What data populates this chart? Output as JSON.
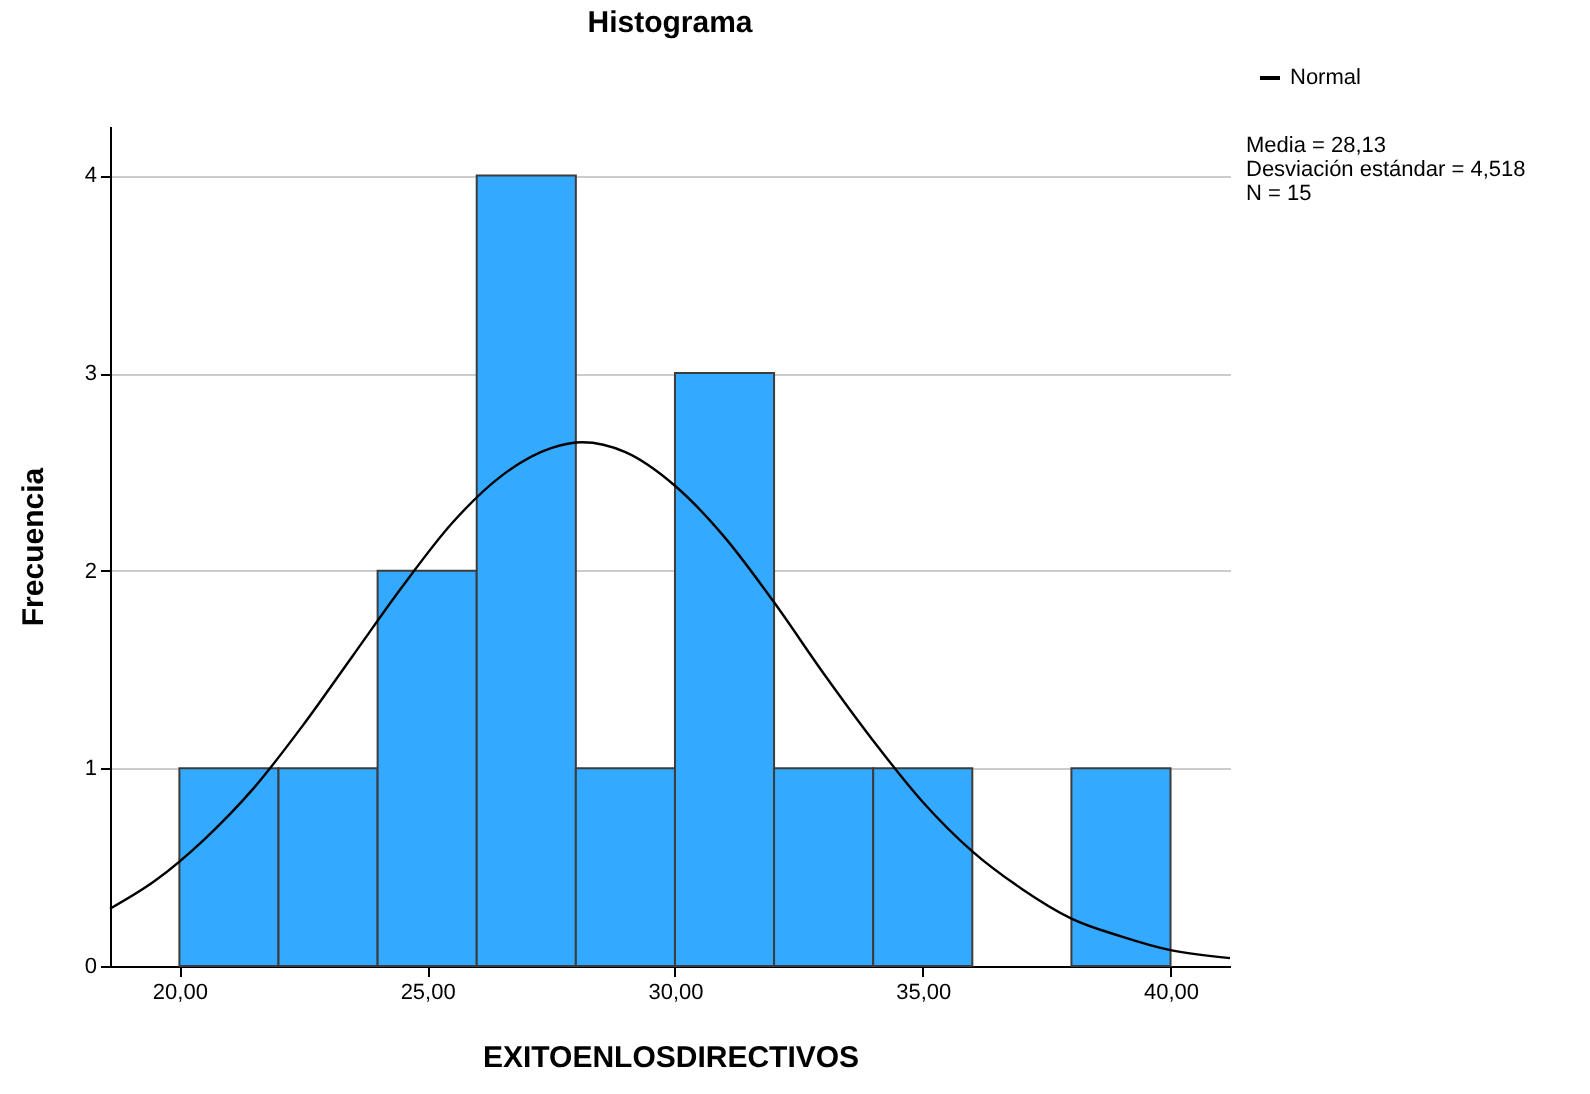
{
  "chart_data": {
    "type": "histogram",
    "title": "Histograma",
    "xlabel": "EXITOENLOSDIRECTIVOS",
    "ylabel": "Frecuencia",
    "bins": [
      20,
      22,
      24,
      26,
      28,
      30,
      32,
      34,
      36,
      38,
      40
    ],
    "values": [
      1,
      1,
      2,
      4,
      1,
      3,
      1,
      1,
      0,
      1
    ],
    "color": "#33aaff",
    "series": [
      {
        "type": "line",
        "name": "Normal",
        "color": "#000000",
        "x": [
          18.6,
          19.5,
          20.5,
          21.5,
          22.5,
          23.5,
          24.5,
          25.5,
          26.5,
          27.5,
          28.13,
          29,
          30,
          31,
          32,
          33,
          34,
          35,
          36,
          37,
          38,
          39,
          40,
          41.2
        ],
        "values": [
          0.29,
          0.43,
          0.64,
          0.9,
          1.22,
          1.57,
          1.92,
          2.24,
          2.48,
          2.62,
          2.65,
          2.6,
          2.43,
          2.17,
          1.84,
          1.48,
          1.14,
          0.83,
          0.58,
          0.39,
          0.24,
          0.15,
          0.08,
          0.04
        ]
      }
    ],
    "xlim": [
      18.6,
      41.2
    ],
    "xticks": [
      {
        "value": 20,
        "label": "20,00"
      },
      {
        "value": 25,
        "label": "25,00"
      },
      {
        "value": 30,
        "label": "30,00"
      },
      {
        "value": 35,
        "label": "35,00"
      },
      {
        "value": 40,
        "label": "40,00"
      }
    ],
    "ylim": [
      0,
      4.25
    ],
    "yticks": [
      0,
      1,
      2,
      3,
      4
    ],
    "grid": "y",
    "legend": "top right",
    "marker": "none",
    "line_style": "solid",
    "annotations": [
      "Media = 28,13",
      "Desviación estándar = 4,518",
      "N = 15"
    ]
  }
}
